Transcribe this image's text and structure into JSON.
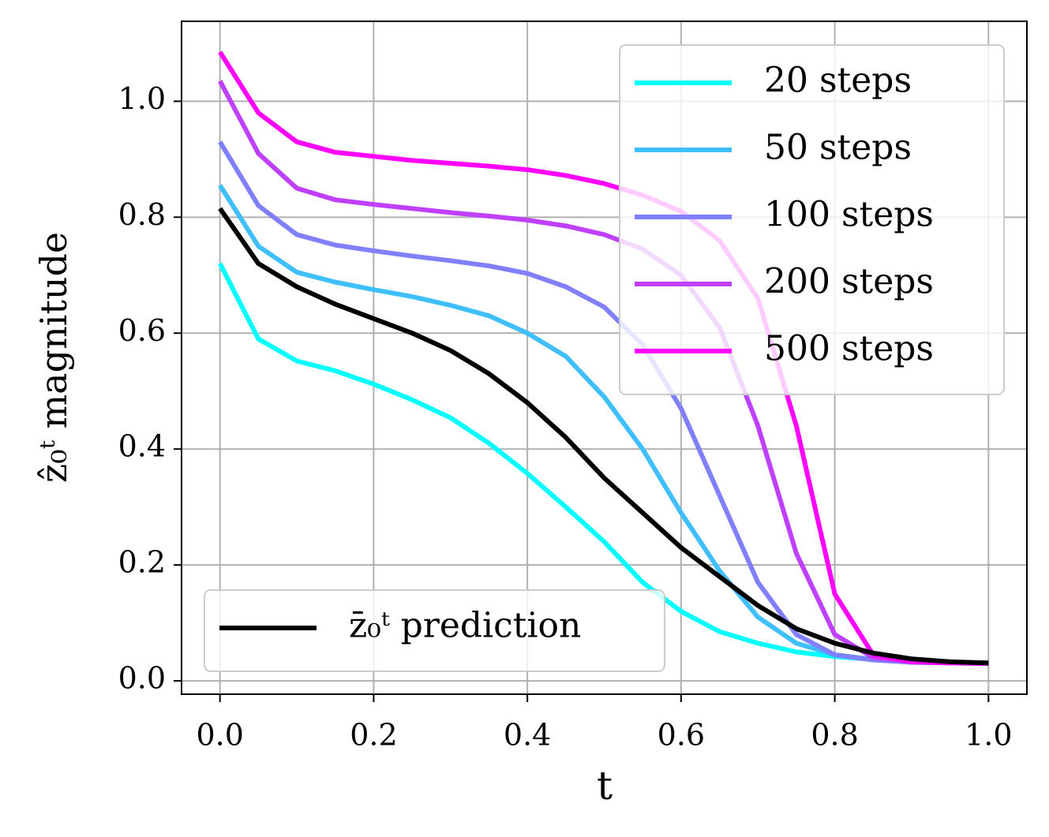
{
  "chart_data": {
    "type": "line",
    "xlabel": "t",
    "ylabel": "ẑ₀ᵗ magnitude",
    "x": [
      0,
      0.05,
      0.1,
      0.15,
      0.2,
      0.25,
      0.3,
      0.35,
      0.4,
      0.45,
      0.5,
      0.55,
      0.6,
      0.65,
      0.7,
      0.75,
      0.8,
      0.85,
      0.9,
      0.95,
      1.0
    ],
    "series": [
      {
        "name": "20 steps",
        "color": "#00ffff",
        "legend": "upper right",
        "values": [
          0.72,
          0.59,
          0.552,
          0.535,
          0.512,
          0.485,
          0.454,
          0.41,
          0.358,
          0.3,
          0.24,
          0.17,
          0.12,
          0.085,
          0.065,
          0.05,
          0.042,
          0.037,
          0.034,
          0.032,
          0.031
        ]
      },
      {
        "name": "50 steps",
        "color": "#40bfff",
        "legend": "upper right",
        "values": [
          0.855,
          0.75,
          0.705,
          0.688,
          0.675,
          0.663,
          0.648,
          0.63,
          0.6,
          0.56,
          0.49,
          0.4,
          0.29,
          0.19,
          0.11,
          0.065,
          0.045,
          0.037,
          0.033,
          0.031,
          0.03
        ]
      },
      {
        "name": "100 steps",
        "color": "#8080ff",
        "legend": "upper right",
        "values": [
          0.93,
          0.82,
          0.77,
          0.752,
          0.742,
          0.733,
          0.725,
          0.716,
          0.703,
          0.68,
          0.645,
          0.58,
          0.47,
          0.32,
          0.17,
          0.08,
          0.045,
          0.036,
          0.032,
          0.031,
          0.03
        ]
      },
      {
        "name": "200 steps",
        "color": "#bf40ff",
        "legend": "upper right",
        "values": [
          1.035,
          0.91,
          0.85,
          0.83,
          0.822,
          0.815,
          0.808,
          0.802,
          0.795,
          0.785,
          0.77,
          0.745,
          0.7,
          0.61,
          0.44,
          0.22,
          0.08,
          0.04,
          0.033,
          0.031,
          0.03
        ]
      },
      {
        "name": "500 steps",
        "color": "#ff00ff",
        "legend": "upper right",
        "values": [
          1.085,
          0.98,
          0.93,
          0.912,
          0.905,
          0.898,
          0.893,
          0.888,
          0.882,
          0.872,
          0.858,
          0.838,
          0.81,
          0.76,
          0.66,
          0.44,
          0.15,
          0.045,
          0.033,
          0.031,
          0.03
        ]
      },
      {
        "name": "z̄₀ᵗ prediction",
        "color": "#000000",
        "legend": "lower left",
        "values": [
          0.815,
          0.72,
          0.68,
          0.65,
          0.625,
          0.6,
          0.57,
          0.53,
          0.48,
          0.42,
          0.35,
          0.29,
          0.23,
          0.18,
          0.13,
          0.09,
          0.065,
          0.048,
          0.038,
          0.033,
          0.031
        ]
      }
    ],
    "xlim": [
      -0.05,
      1.05
    ],
    "ylim": [
      -0.023,
      1.138
    ],
    "xticks": [
      {
        "value": 0,
        "label": "0.0"
      },
      0.2,
      0.4,
      0.6,
      0.8,
      {
        "value": 1,
        "label": "1.0"
      }
    ],
    "yticks": [
      {
        "value": 0,
        "label": "0.0"
      },
      0.2,
      0.4,
      0.6,
      0.8,
      {
        "value": 1,
        "label": "1.0"
      }
    ],
    "grid": true
  }
}
